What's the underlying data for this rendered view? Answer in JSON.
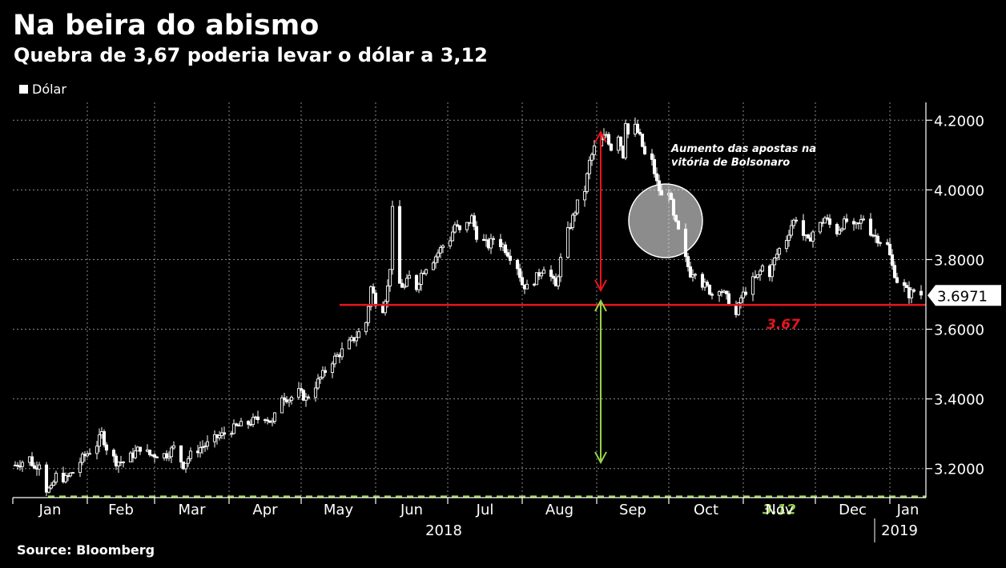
{
  "title": "Na beira do abismo",
  "subtitle": "Quebra de 3,67 poderia levar o dólar a 3,12",
  "legend": "Dólar",
  "source": "Source: Bloomberg",
  "chart_data": {
    "type": "candlestick",
    "series_name": "Dólar",
    "ylim": [
      3.08,
      4.32
    ],
    "y_ticks": [
      "3.2000",
      "3.4000",
      "3.6000",
      "3.8000",
      "4.0000",
      "4.2000"
    ],
    "x_months": [
      "Jan",
      "Feb",
      "Mar",
      "Apr",
      "May",
      "Jun",
      "Jul",
      "Aug",
      "Sep",
      "Oct",
      "Nov",
      "Dec",
      "Jan"
    ],
    "x_years": [
      "2018",
      "2019"
    ],
    "last_value": "3.6971",
    "levels": [
      {
        "value": 3.67,
        "label": "3.67",
        "color": "#e8141d",
        "style": "solid"
      },
      {
        "value": 3.12,
        "label": "3.12",
        "color": "#97d34a",
        "style": "dashed"
      }
    ],
    "annotation": "Aumento das apostas na vitória de Bolsonaro",
    "close_path": [
      [
        "2018-01-02",
        3.21
      ],
      [
        "2018-01-05",
        3.22
      ],
      [
        "2018-01-08",
        3.23
      ],
      [
        "2018-01-10",
        3.2
      ],
      [
        "2018-01-12",
        3.22
      ],
      [
        "2018-01-15",
        3.14
      ],
      [
        "2018-01-17",
        3.14
      ],
      [
        "2018-01-19",
        3.18
      ],
      [
        "2018-01-23",
        3.17
      ],
      [
        "2018-01-26",
        3.19
      ],
      [
        "2018-01-30",
        3.23
      ],
      [
        "2018-02-02",
        3.25
      ],
      [
        "2018-02-05",
        3.27
      ],
      [
        "2018-02-07",
        3.3
      ],
      [
        "2018-02-09",
        3.26
      ],
      [
        "2018-02-13",
        3.22
      ],
      [
        "2018-02-16",
        3.22
      ],
      [
        "2018-02-20",
        3.24
      ],
      [
        "2018-02-23",
        3.26
      ],
      [
        "2018-02-27",
        3.24
      ],
      [
        "2018-03-02",
        3.24
      ],
      [
        "2018-03-06",
        3.24
      ],
      [
        "2018-03-09",
        3.26
      ],
      [
        "2018-03-13",
        3.21
      ],
      [
        "2018-03-16",
        3.24
      ],
      [
        "2018-03-20",
        3.26
      ],
      [
        "2018-03-23",
        3.27
      ],
      [
        "2018-03-27",
        3.29
      ],
      [
        "2018-03-30",
        3.3
      ],
      [
        "2018-04-04",
        3.32
      ],
      [
        "2018-04-09",
        3.33
      ],
      [
        "2018-04-12",
        3.34
      ],
      [
        "2018-04-16",
        3.35
      ],
      [
        "2018-04-19",
        3.33
      ],
      [
        "2018-04-23",
        3.41
      ],
      [
        "2018-04-26",
        3.4
      ],
      [
        "2018-04-30",
        3.42
      ],
      [
        "2018-05-03",
        3.4
      ],
      [
        "2018-05-07",
        3.44
      ],
      [
        "2018-05-10",
        3.47
      ],
      [
        "2018-05-14",
        3.51
      ],
      [
        "2018-05-17",
        3.53
      ],
      [
        "2018-05-21",
        3.56
      ],
      [
        "2018-05-24",
        3.58
      ],
      [
        "2018-05-28",
        3.62
      ],
      [
        "2018-05-30",
        3.72
      ],
      [
        "2018-06-01",
        3.68
      ],
      [
        "2018-06-04",
        3.66
      ],
      [
        "2018-06-06",
        3.72
      ],
      [
        "2018-06-07",
        3.78
      ],
      [
        "2018-06-08",
        3.94
      ],
      [
        "2018-06-11",
        3.73
      ],
      [
        "2018-06-13",
        3.72
      ],
      [
        "2018-06-15",
        3.75
      ],
      [
        "2018-06-18",
        3.72
      ],
      [
        "2018-06-20",
        3.76
      ],
      [
        "2018-06-22",
        3.78
      ],
      [
        "2018-06-25",
        3.8
      ],
      [
        "2018-06-27",
        3.82
      ],
      [
        "2018-06-29",
        3.84
      ],
      [
        "2018-07-02",
        3.86
      ],
      [
        "2018-07-04",
        3.9
      ],
      [
        "2018-07-06",
        3.88
      ],
      [
        "2018-07-09",
        3.9
      ],
      [
        "2018-07-11",
        3.92
      ],
      [
        "2018-07-13",
        3.87
      ],
      [
        "2018-07-16",
        3.85
      ],
      [
        "2018-07-18",
        3.84
      ],
      [
        "2018-07-20",
        3.86
      ],
      [
        "2018-07-24",
        3.84
      ],
      [
        "2018-07-26",
        3.82
      ],
      [
        "2018-07-30",
        3.78
      ],
      [
        "2018-08-01",
        3.73
      ],
      [
        "2018-08-03",
        3.72
      ],
      [
        "2018-08-06",
        3.74
      ],
      [
        "2018-08-08",
        3.76
      ],
      [
        "2018-08-10",
        3.78
      ],
      [
        "2018-08-13",
        3.75
      ],
      [
        "2018-08-15",
        3.72
      ],
      [
        "2018-08-17",
        3.8
      ],
      [
        "2018-08-20",
        3.88
      ],
      [
        "2018-08-22",
        3.92
      ],
      [
        "2018-08-24",
        3.96
      ],
      [
        "2018-08-27",
        4.0
      ],
      [
        "2018-08-29",
        4.08
      ],
      [
        "2018-08-31",
        4.12
      ],
      [
        "2018-09-03",
        4.14
      ],
      [
        "2018-09-05",
        4.16
      ],
      [
        "2018-09-07",
        4.12
      ],
      [
        "2018-09-10",
        4.16
      ],
      [
        "2018-09-12",
        4.1
      ],
      [
        "2018-09-13",
        4.2
      ],
      [
        "2018-09-14",
        4.16
      ],
      [
        "2018-09-17",
        4.18
      ],
      [
        "2018-09-19",
        4.15
      ],
      [
        "2018-09-21",
        4.1
      ],
      [
        "2018-09-24",
        4.08
      ],
      [
        "2018-09-26",
        4.02
      ],
      [
        "2018-09-28",
        3.98
      ],
      [
        "2018-10-01",
        4.0
      ],
      [
        "2018-10-03",
        3.92
      ],
      [
        "2018-10-05",
        3.88
      ],
      [
        "2018-10-08",
        3.8
      ],
      [
        "2018-10-10",
        3.76
      ],
      [
        "2018-10-12",
        3.77
      ],
      [
        "2018-10-15",
        3.73
      ],
      [
        "2018-10-17",
        3.72
      ],
      [
        "2018-10-19",
        3.7
      ],
      [
        "2018-10-22",
        3.72
      ],
      [
        "2018-10-24",
        3.7
      ],
      [
        "2018-10-26",
        3.68
      ],
      [
        "2018-10-29",
        3.64
      ],
      [
        "2018-10-31",
        3.69
      ],
      [
        "2018-11-02",
        3.71
      ],
      [
        "2018-11-05",
        3.74
      ],
      [
        "2018-11-07",
        3.75
      ],
      [
        "2018-11-09",
        3.78
      ],
      [
        "2018-11-12",
        3.76
      ],
      [
        "2018-11-14",
        3.8
      ],
      [
        "2018-11-16",
        3.83
      ],
      [
        "2018-11-19",
        3.86
      ],
      [
        "2018-11-21",
        3.9
      ],
      [
        "2018-11-23",
        3.92
      ],
      [
        "2018-11-26",
        3.87
      ],
      [
        "2018-11-28",
        3.85
      ],
      [
        "2018-11-30",
        3.88
      ],
      [
        "2018-12-03",
        3.9
      ],
      [
        "2018-12-05",
        3.92
      ],
      [
        "2018-12-07",
        3.9
      ],
      [
        "2018-12-10",
        3.88
      ],
      [
        "2018-12-12",
        3.9
      ],
      [
        "2018-12-14",
        3.91
      ],
      [
        "2018-12-17",
        3.89
      ],
      [
        "2018-12-19",
        3.9
      ],
      [
        "2018-12-21",
        3.92
      ],
      [
        "2018-12-24",
        3.88
      ],
      [
        "2018-12-27",
        3.86
      ],
      [
        "2018-12-31",
        3.84
      ],
      [
        "2019-01-02",
        3.78
      ],
      [
        "2019-01-04",
        3.74
      ],
      [
        "2019-01-07",
        3.72
      ],
      [
        "2019-01-09",
        3.7
      ],
      [
        "2019-01-11",
        3.71
      ],
      [
        "2019-01-14",
        3.7
      ]
    ]
  }
}
